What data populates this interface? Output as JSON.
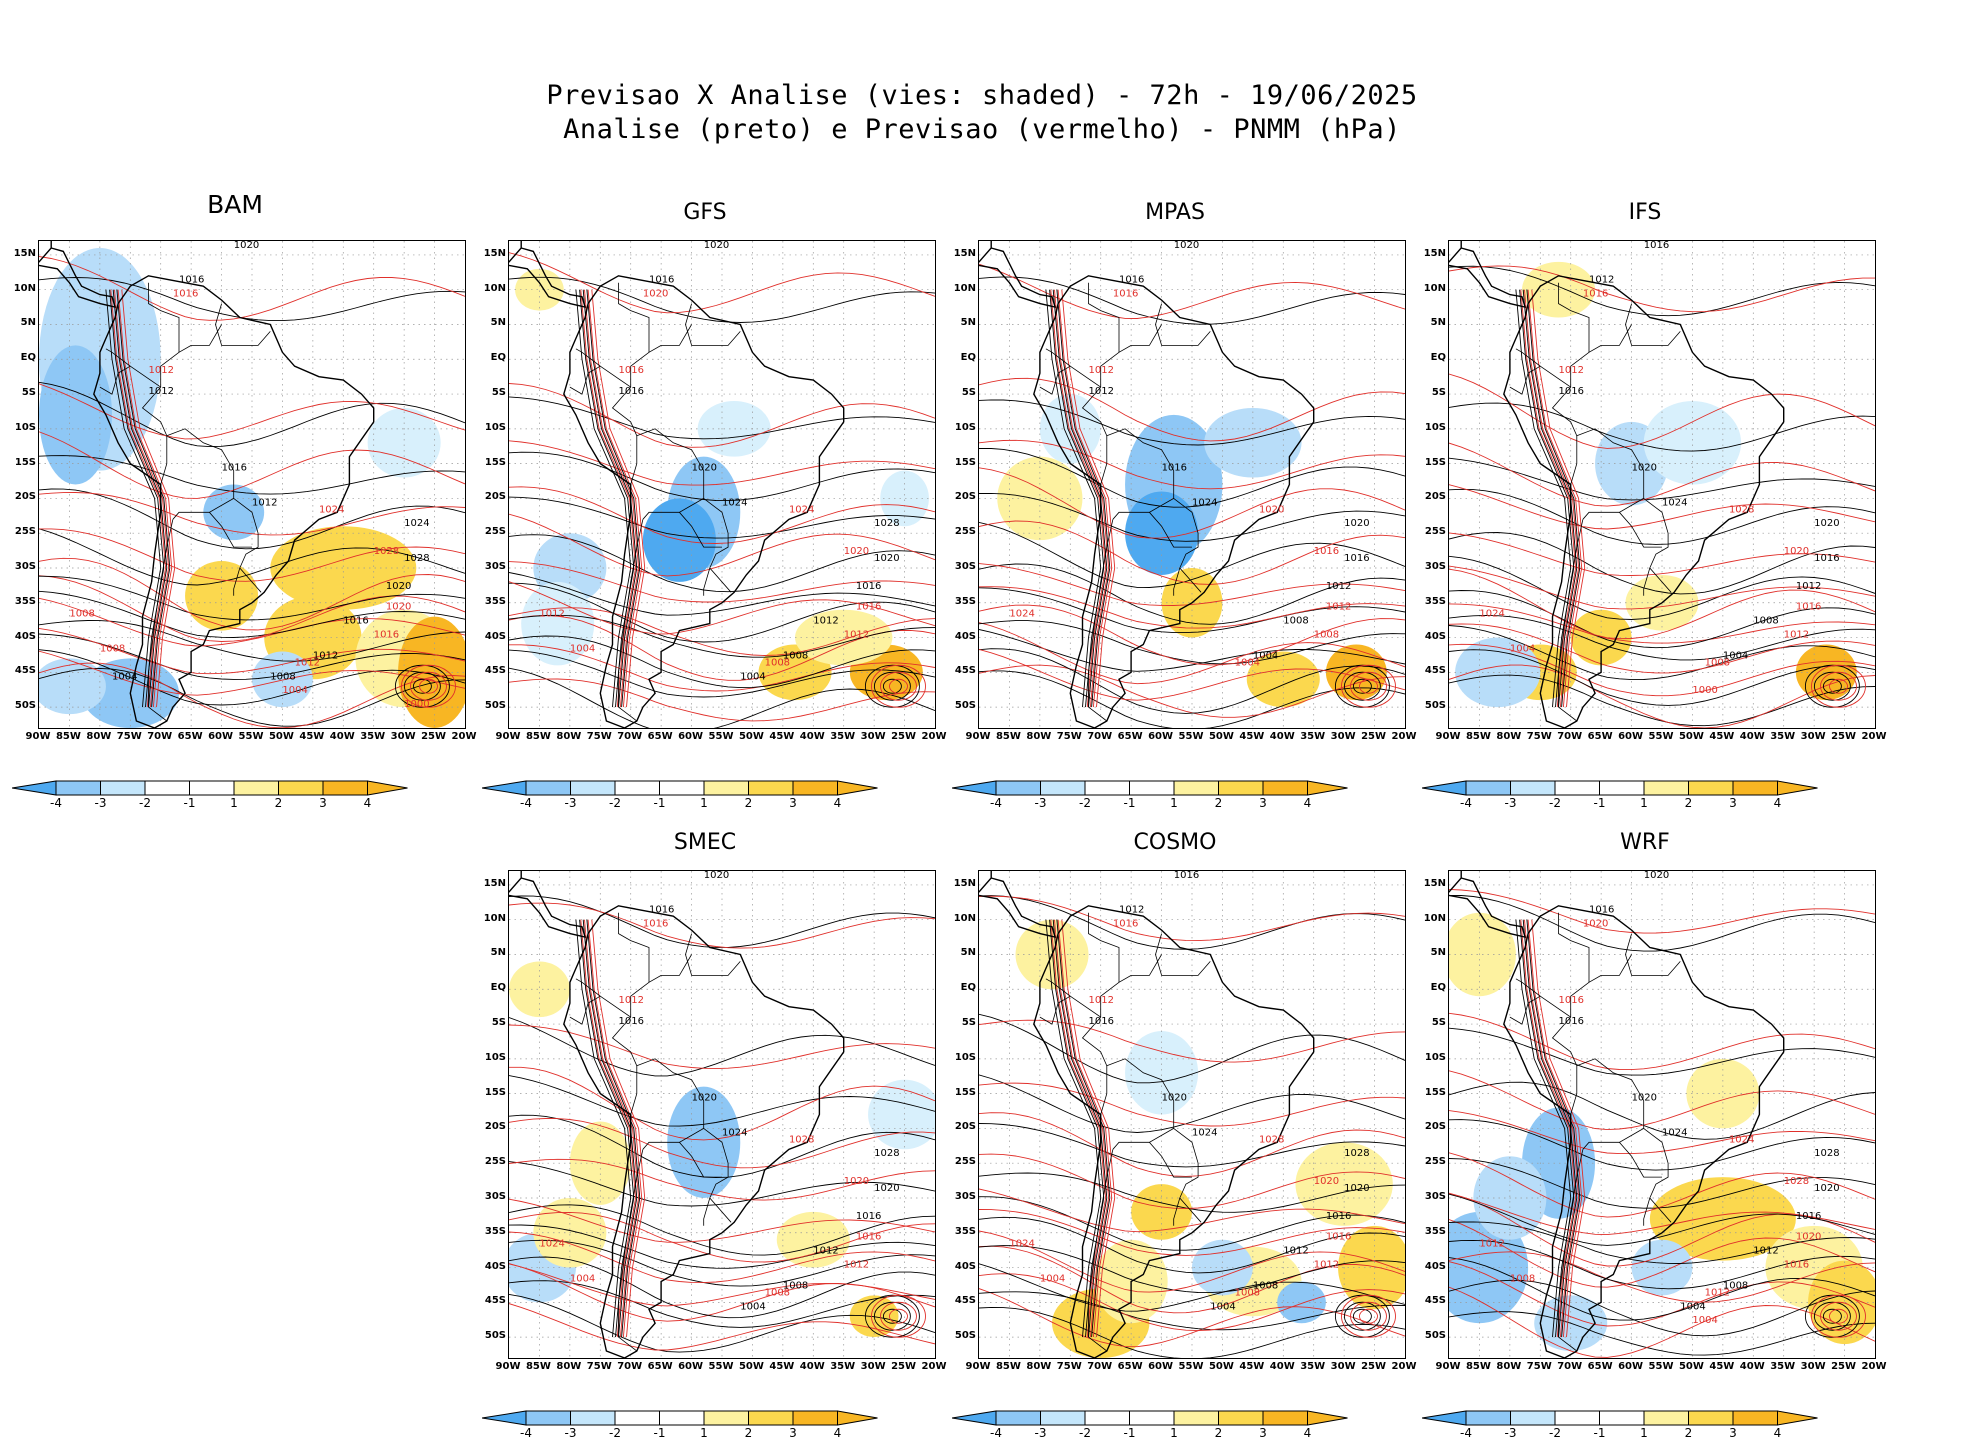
{
  "header": {
    "line1": "Previsao X Analise (vies: shaded) - 72h - 19/06/2025",
    "line2": "Analise (preto) e Previsao (vermelho) - PNMM (hPa)"
  },
  "axes": {
    "lat_labels": [
      "15N",
      "10N",
      "5N",
      "EQ",
      "5S",
      "10S",
      "15S",
      "20S",
      "25S",
      "30S",
      "35S",
      "40S",
      "45S",
      "50S"
    ],
    "lon_labels": [
      "90W",
      "85W",
      "80W",
      "75W",
      "70W",
      "65W",
      "60W",
      "55W",
      "50W",
      "45W",
      "40W",
      "35W",
      "30W",
      "25W",
      "20W"
    ]
  },
  "colorbar": {
    "labels": [
      "-4",
      "-3",
      "-2",
      "-1",
      "1",
      "2",
      "3",
      "4"
    ],
    "colors": [
      "#4ea9f0",
      "#8ec7f5",
      "#c4e6fb",
      "#ffffff",
      "#fdf2a0",
      "#fbd84e",
      "#f8b623"
    ]
  },
  "colors": {
    "analysis": "#000000",
    "forecast": "#e0302b"
  },
  "panels": [
    {
      "name": "BAM",
      "contours_black": [
        "1020",
        "1016",
        "1012",
        "1016",
        "1012",
        "1024",
        "1028",
        "1020",
        "1016",
        "1012",
        "1008",
        "1004"
      ],
      "contours_red": [
        "1016",
        "1012",
        "1008",
        "1024",
        "1028",
        "1020",
        "1016",
        "1012",
        "1008",
        "1004",
        "1000"
      ]
    },
    {
      "name": "GFS",
      "contours_black": [
        "1020",
        "1016",
        "1016",
        "1020",
        "1024",
        "1028",
        "1020",
        "1016",
        "1012",
        "1008",
        "1004"
      ],
      "contours_red": [
        "1020",
        "1016",
        "1012",
        "1024",
        "1020",
        "1016",
        "1012",
        "1008",
        "1004"
      ]
    },
    {
      "name": "MPAS",
      "contours_black": [
        "1020",
        "1016",
        "1012",
        "1016",
        "1024",
        "1020",
        "1016",
        "1012",
        "1008",
        "1004"
      ],
      "contours_red": [
        "1016",
        "1012",
        "1024",
        "1020",
        "1016",
        "1012",
        "1008",
        "1004"
      ]
    },
    {
      "name": "IFS",
      "contours_black": [
        "1016",
        "1012",
        "1016",
        "1020",
        "1024",
        "1020",
        "1016",
        "1012",
        "1008",
        "1004"
      ],
      "contours_red": [
        "1016",
        "1012",
        "1024",
        "1028",
        "1020",
        "1016",
        "1012",
        "1008",
        "1004",
        "1000"
      ]
    },
    {
      "name": "SMEC",
      "contours_black": [
        "1020",
        "1016",
        "1016",
        "1020",
        "1024",
        "1028",
        "1020",
        "1016",
        "1012",
        "1008",
        "1004"
      ],
      "contours_red": [
        "1016",
        "1012",
        "1024",
        "1028",
        "1020",
        "1016",
        "1012",
        "1008",
        "1004"
      ]
    },
    {
      "name": "COSMO",
      "contours_black": [
        "1016",
        "1012",
        "1016",
        "1020",
        "1024",
        "1028",
        "1020",
        "1016",
        "1012",
        "1008",
        "1004"
      ],
      "contours_red": [
        "1016",
        "1012",
        "1024",
        "1028",
        "1020",
        "1016",
        "1012",
        "1008",
        "1004"
      ]
    },
    {
      "name": "WRF",
      "contours_black": [
        "1020",
        "1016",
        "1016",
        "1020",
        "1024",
        "1028",
        "1020",
        "1016",
        "1012",
        "1008",
        "1004"
      ],
      "contours_red": [
        "1020",
        "1016",
        "1012",
        "1024",
        "1028",
        "1020",
        "1016",
        "1012",
        "1008",
        "1004"
      ]
    }
  ]
}
